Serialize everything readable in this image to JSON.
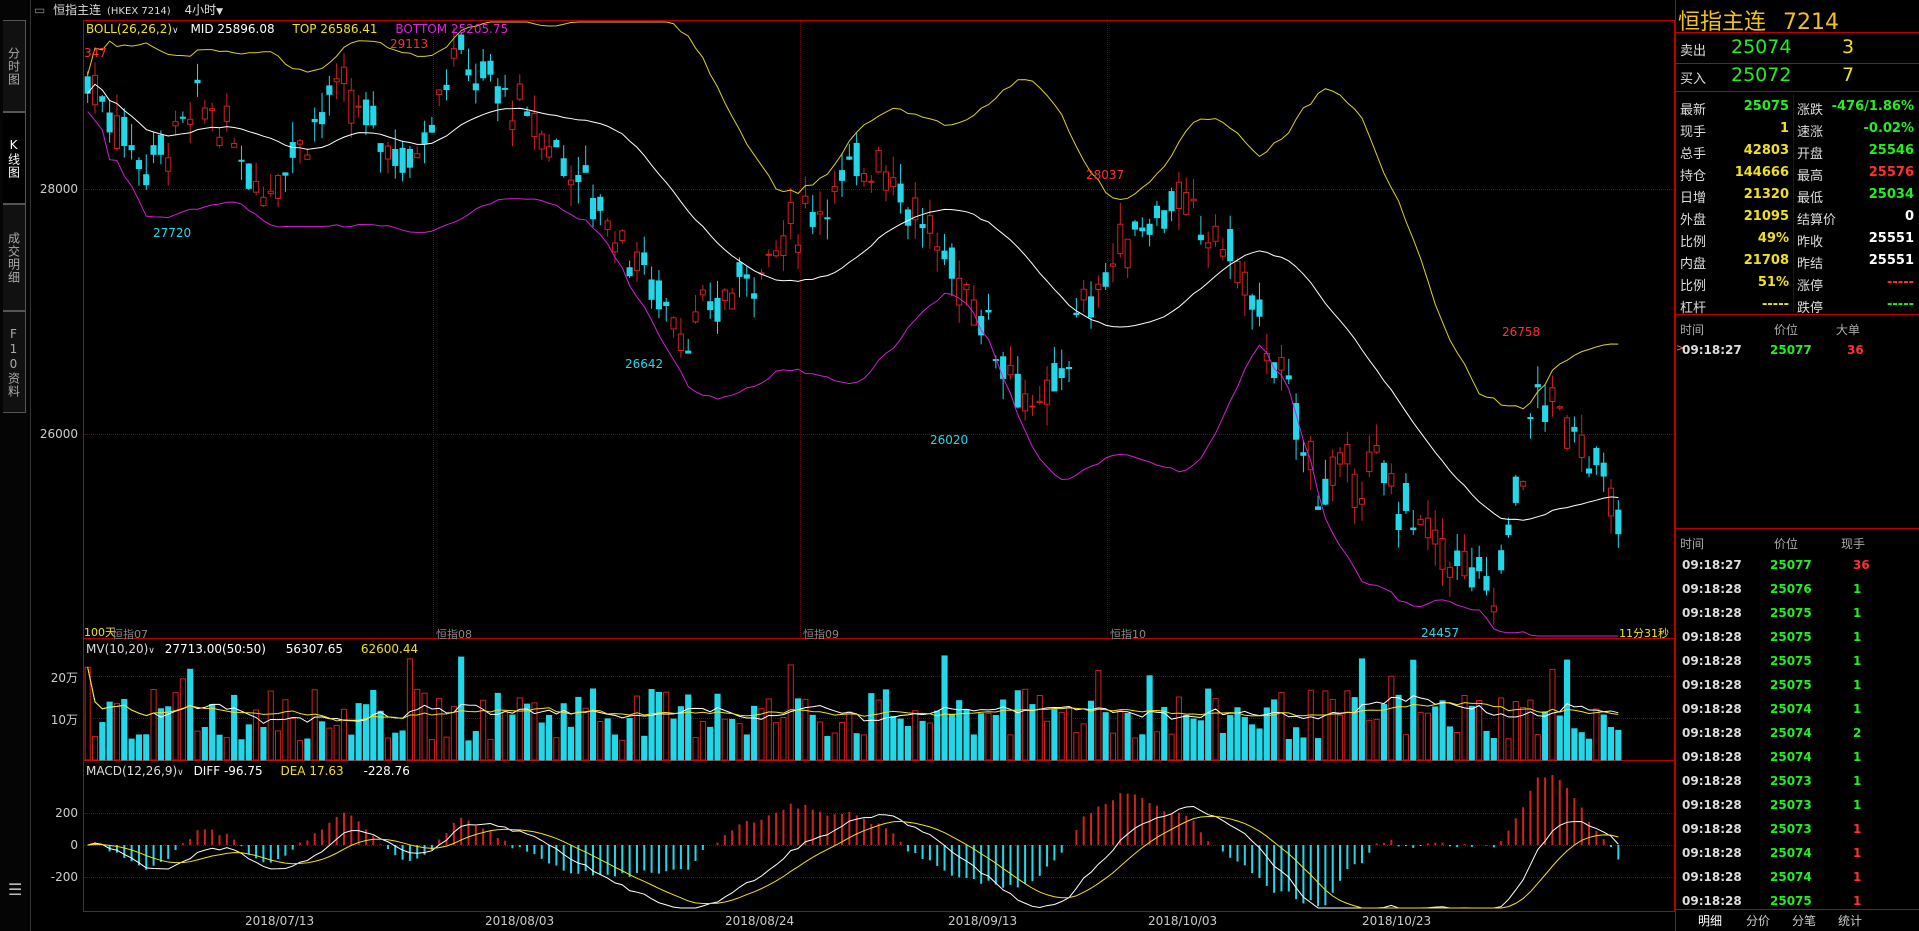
{
  "window": {
    "title": "恒指主连",
    "code": "(HKEX 7214)",
    "period": "4小时"
  },
  "side_tabs": [
    "分时图",
    "K线图",
    "成交明细",
    "F10资料"
  ],
  "boll": {
    "label": "BOLL(26,26,2)",
    "mid": "MID 25896.08",
    "top": "TOP 26586.41",
    "bottom": "BOTTOM 25205.75"
  },
  "price_axis": [
    "28000",
    "26000"
  ],
  "peak_labels": {
    "left_cut": "347",
    "p1": "29113",
    "p2": "27720",
    "p3": "26642",
    "p4": "26020",
    "p5": "28037",
    "p6": "26758",
    "p7": "24457"
  },
  "period_labels": {
    "left": "100天",
    "l07": "恒指07",
    "l08": "恒指08",
    "l09": "恒指09",
    "l10": "恒指10",
    "timer": "11分31秒"
  },
  "mv": {
    "label": "MV(10,20)",
    "v1": "27713.00(50:50)",
    "v2": "56307.65",
    "v3": "62600.44",
    "axis": [
      "20万",
      "10万"
    ]
  },
  "macd": {
    "label": "MACD(12,26,9)",
    "diff": "DIFF -96.75",
    "dea": "DEA 17.63",
    "macd": "-228.76",
    "axis": [
      "200",
      "0",
      "-200"
    ]
  },
  "dates": [
    "2018/07/13",
    "2018/08/03",
    "2018/08/24",
    "2018/09/13",
    "2018/10/03",
    "2018/10/23"
  ],
  "quote": {
    "name": "恒指主连",
    "code": "7214",
    "sell_label": "卖出",
    "sell_price": "25074",
    "sell_vol": "3",
    "buy_label": "买入",
    "buy_price": "25072",
    "buy_vol": "7",
    "rows": [
      {
        "l": "最新",
        "v": "25075",
        "vc": "#22ee22",
        "r": "涨跌",
        "rv": "-476/1.86%",
        "rvc": "#22ee22"
      },
      {
        "l": "现手",
        "v": "1",
        "vc": "#f0e020",
        "r": "速涨",
        "rv": "-0.02%",
        "rvc": "#22ee22"
      },
      {
        "l": "总手",
        "v": "42803",
        "vc": "#f0e020",
        "r": "开盘",
        "rv": "25546",
        "rvc": "#22ee22"
      },
      {
        "l": "持仓",
        "v": "144666",
        "vc": "#f0e020",
        "r": "最高",
        "rv": "25576",
        "rvc": "#ff3030"
      },
      {
        "l": "日增",
        "v": "21320",
        "vc": "#f0e020",
        "r": "最低",
        "rv": "25034",
        "rvc": "#22ee22"
      },
      {
        "l": "外盘",
        "v": "21095",
        "vc": "#f0e020",
        "r": "结算价",
        "rv": "0",
        "rvc": "#ffffff"
      },
      {
        "l": "比例",
        "v": "49%",
        "vc": "#f0e020",
        "r": "昨收",
        "rv": "25551",
        "rvc": "#ffffff"
      },
      {
        "l": "内盘",
        "v": "21708",
        "vc": "#f0e020",
        "r": "昨结",
        "rv": "25551",
        "rvc": "#ffffff"
      },
      {
        "l": "比例",
        "v": "51%",
        "vc": "#f0e020",
        "r": "涨停",
        "rv": "-----",
        "rvc": "#ff3030"
      },
      {
        "l": "杠杆",
        "v": "-----",
        "vc": "#f0e020",
        "r": "跌停",
        "rv": "-----",
        "rvc": "#22ee22"
      }
    ]
  },
  "big_orders": {
    "h_time": "时间",
    "h_price": "价位",
    "h_big": "大单",
    "rows": [
      {
        "time": "09:18:27",
        "price": "25077",
        "vol": "36"
      }
    ]
  },
  "ticks": {
    "h_time": "时间",
    "h_price": "价位",
    "h_vol": "现手",
    "rows": [
      {
        "time": "09:18:27",
        "price": "25077",
        "vol": "36",
        "vc": "#ff3030"
      },
      {
        "time": "09:18:28",
        "price": "25076",
        "vol": "1",
        "vc": "#22ee22"
      },
      {
        "time": "09:18:28",
        "price": "25075",
        "vol": "1",
        "vc": "#22ee22"
      },
      {
        "time": "09:18:28",
        "price": "25075",
        "vol": "1",
        "vc": "#22ee22"
      },
      {
        "time": "09:18:28",
        "price": "25075",
        "vol": "1",
        "vc": "#22ee22"
      },
      {
        "time": "09:18:28",
        "price": "25075",
        "vol": "1",
        "vc": "#22ee22"
      },
      {
        "time": "09:18:28",
        "price": "25074",
        "vol": "1",
        "vc": "#22ee22"
      },
      {
        "time": "09:18:28",
        "price": "25074",
        "vol": "2",
        "vc": "#22ee22"
      },
      {
        "time": "09:18:28",
        "price": "25074",
        "vol": "1",
        "vc": "#22ee22"
      },
      {
        "time": "09:18:28",
        "price": "25073",
        "vol": "1",
        "vc": "#22ee22"
      },
      {
        "time": "09:18:28",
        "price": "25073",
        "vol": "1",
        "vc": "#22ee22"
      },
      {
        "time": "09:18:28",
        "price": "25073",
        "vol": "1",
        "vc": "#ff3030"
      },
      {
        "time": "09:18:28",
        "price": "25074",
        "vol": "1",
        "vc": "#ff3030"
      },
      {
        "time": "09:18:28",
        "price": "25074",
        "vol": "1",
        "vc": "#ff3030"
      },
      {
        "time": "09:18:28",
        "price": "25075",
        "vol": "1",
        "vc": "#ff3030"
      }
    ]
  },
  "bottom_tabs": [
    "明细",
    "分价",
    "分笔",
    "统计"
  ],
  "colors": {
    "up": "#d02020",
    "down": "#22d8e8",
    "mid": "#ffffff",
    "top": "#d8d020",
    "bottom": "#d020d0"
  }
}
